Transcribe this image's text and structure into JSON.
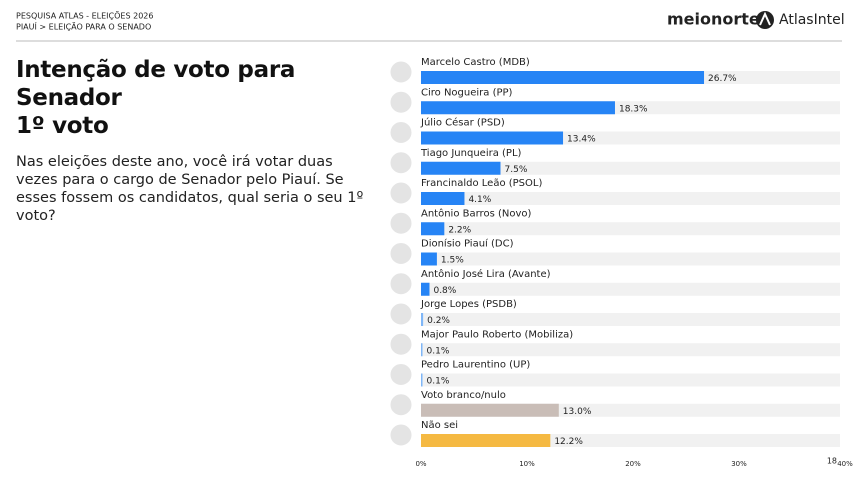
{
  "header": {
    "line1": "PESQUISA ATLAS - ELEIÇÕES 2026",
    "line2": "PIAUÍ > ELEIÇÃO PARA O SENADO",
    "logo_left": "meionorte",
    "logo_right": "AtlasIntel"
  },
  "page_number": "18",
  "chart_data": {
    "type": "bar",
    "orientation": "horizontal",
    "title": "Intenção de voto para\nSenador\n1º voto",
    "subtitle": "Nas eleições deste ano, você irá votar duas vezes para o cargo de Senador pelo Piauí. Se esses fossem os candidatos, qual seria o seu 1º voto?",
    "categories": [
      "Marcelo Castro (MDB)",
      "Ciro Nogueira (PP)",
      "Júlio César (PSD)",
      "Tiago Junqueira (PL)",
      "Francinaldo Leão (PSOL)",
      "Antônio Barros (Novo)",
      "Dionísio Piauí (DC)",
      "Antônio José Lira (Avante)",
      "Jorge Lopes (PSDB)",
      "Major Paulo Roberto (Mobiliza)",
      "Pedro Laurentino (UP)",
      "Voto branco/nulo",
      "Não sei"
    ],
    "values": [
      26.7,
      18.3,
      13.4,
      7.5,
      4.1,
      2.2,
      1.5,
      0.8,
      0.2,
      0.1,
      0.1,
      13.0,
      12.2
    ],
    "value_labels": [
      "26.7%",
      "18.3%",
      "13.4%",
      "7.5%",
      "4.1%",
      "2.2%",
      "1.5%",
      "0.8%",
      "0.2%",
      "0.1%",
      "0.1%",
      "13.0%",
      "12.2%"
    ],
    "colors": [
      "#2684f5",
      "#2684f5",
      "#2684f5",
      "#2684f5",
      "#2684f5",
      "#2684f5",
      "#2684f5",
      "#2684f5",
      "#7fb6f7",
      "#7fb6f7",
      "#7fb6f7",
      "#c9bdb7",
      "#f5b942"
    ],
    "xlim": [
      0,
      40
    ],
    "xticks": [
      {
        "value": 0,
        "label": "0%"
      },
      {
        "value": 10,
        "label": "10%"
      },
      {
        "value": 20,
        "label": "20%"
      },
      {
        "value": 30,
        "label": "30%"
      },
      {
        "value": 40,
        "label": "40%"
      }
    ],
    "grid": false
  }
}
